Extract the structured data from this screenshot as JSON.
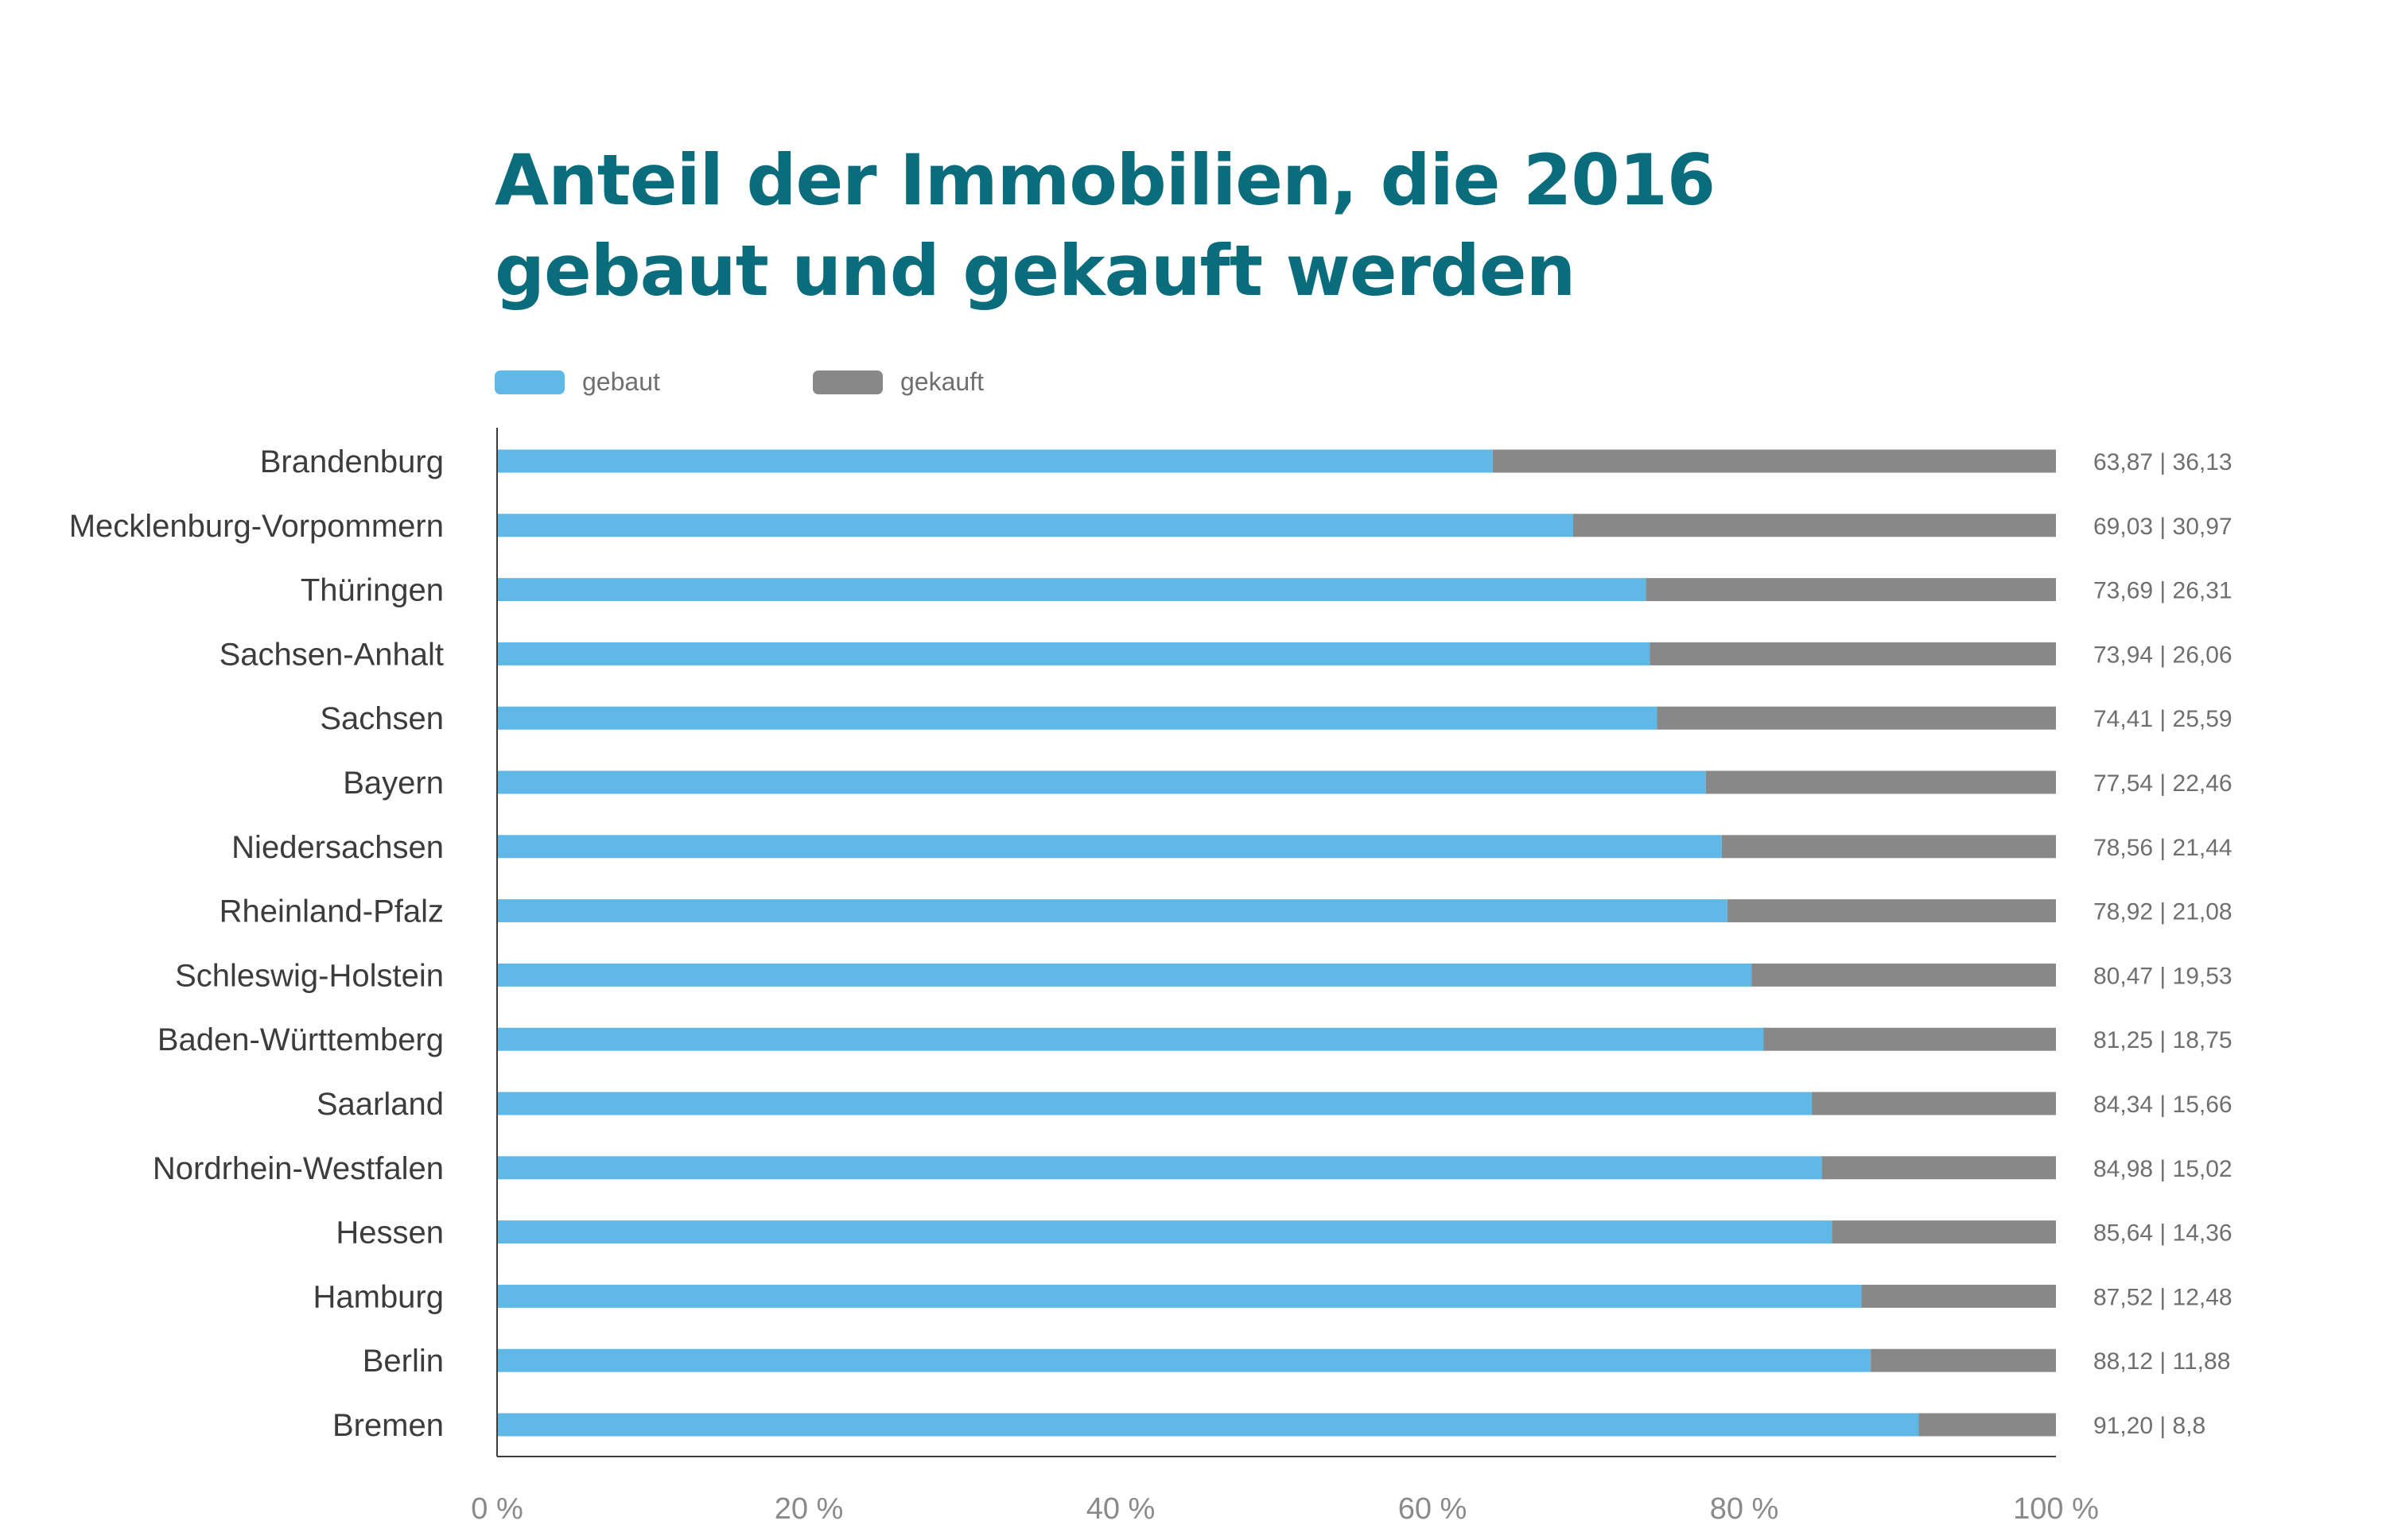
{
  "chart_data": {
    "type": "bar",
    "stacked": true,
    "orientation": "horizontal",
    "title_lines": [
      "Anteil der Immobilien, die 2016",
      "gebaut und gekauft werden"
    ],
    "categories": [
      "Brandenburg",
      "Mecklenburg-Vorpommern",
      "Thüringen",
      "Sachsen-Anhalt",
      "Sachsen",
      "Bayern",
      "Niedersachsen",
      "Rheinland-Pfalz",
      "Schleswig-Holstein",
      "Baden-Württemberg",
      "Saarland",
      "Nordrhein-Westfalen",
      "Hessen",
      "Hamburg",
      "Berlin",
      "Bremen"
    ],
    "series": [
      {
        "name": "gebaut",
        "color": "#5fb8e6",
        "values": [
          63.87,
          69.03,
          73.69,
          73.94,
          74.41,
          77.54,
          78.56,
          78.92,
          80.47,
          81.25,
          84.34,
          84.98,
          85.64,
          87.52,
          88.12,
          91.2
        ]
      },
      {
        "name": "gekauft",
        "color": "#888888",
        "values": [
          36.13,
          30.97,
          26.31,
          26.06,
          25.59,
          22.46,
          21.44,
          21.08,
          19.53,
          18.75,
          15.66,
          15.02,
          14.36,
          12.48,
          11.88,
          8.8
        ]
      }
    ],
    "value_labels": [
      "63,87 | 36,13",
      "69,03 | 30,97",
      "73,69 | 26,31",
      "73,94 | 26,06",
      "74,41 | 25,59",
      "77,54 | 22,46",
      "78,56 | 21,44",
      "78,92 | 21,08",
      "80,47 | 19,53",
      "81,25 | 18,75",
      "84,34 | 15,66",
      "84,98 | 15,02",
      "85,64 | 14,36",
      "87,52 | 12,48",
      "88,12 | 11,88",
      "91,20 | 8,8"
    ],
    "x_ticks": [
      "0 %",
      "20 %",
      "40 %",
      "60 %",
      "80 %",
      "100 %"
    ],
    "xlim": [
      0,
      100
    ],
    "legend_position": "top-left",
    "grid": false,
    "title_color": "#0b6c7c"
  }
}
